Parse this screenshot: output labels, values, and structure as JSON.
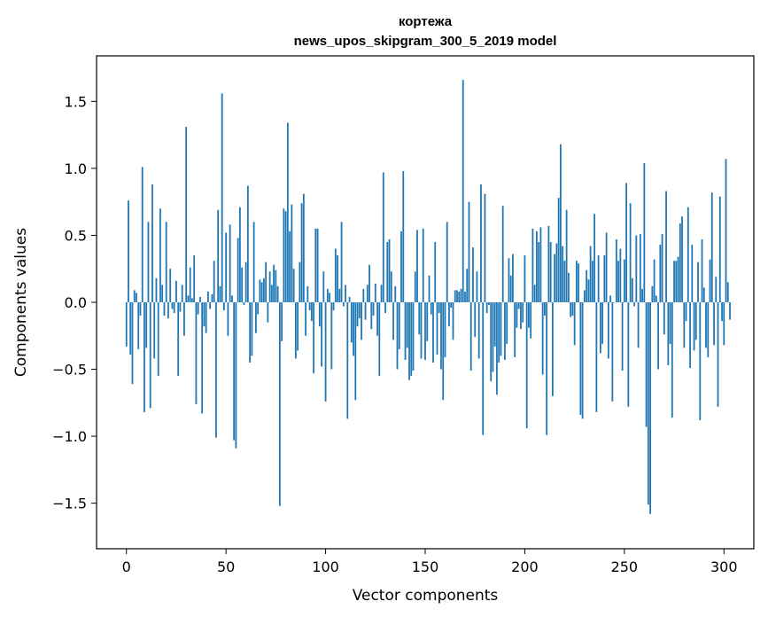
{
  "colors": {
    "bar": "#1f77b4",
    "axis": "#000000",
    "background": "#ffffff"
  },
  "chart_data": {
    "type": "bar",
    "title_lines": [
      "кортежа",
      "news_upos_skipgram_300_5_2019 model"
    ],
    "xlabel": "Vector components",
    "ylabel": "Components values",
    "xlim": [
      -15,
      315
    ],
    "ylim": [
      -1.84,
      1.84
    ],
    "grid": false,
    "legend": false,
    "x_ticks": [
      0,
      50,
      100,
      150,
      200,
      250,
      300
    ],
    "x_tick_labels": [
      "0",
      "50",
      "100",
      "150",
      "200",
      "250",
      "300"
    ],
    "y_ticks": [
      -1.5,
      -1.0,
      -0.5,
      0.0,
      0.5,
      1.0,
      1.5
    ],
    "y_tick_labels": [
      "−1.5",
      "−1.0",
      "−0.5",
      "0.0",
      "0.5",
      "1.0",
      "1.5"
    ],
    "values": [
      -0.33,
      0.76,
      -0.39,
      -0.61,
      0.09,
      0.07,
      -0.35,
      -0.1,
      1.01,
      -0.82,
      -0.34,
      0.6,
      -0.79,
      0.88,
      -0.42,
      0.18,
      -0.55,
      0.7,
      0.13,
      -0.1,
      0.6,
      -0.12,
      0.25,
      -0.05,
      -0.08,
      0.16,
      -0.55,
      -0.07,
      0.13,
      -0.25,
      1.31,
      0.05,
      0.26,
      0.03,
      0.35,
      -0.76,
      -0.09,
      0.04,
      -0.83,
      -0.18,
      -0.23,
      0.08,
      -0.05,
      0.06,
      0.31,
      -1.01,
      0.69,
      0.12,
      1.56,
      -0.06,
      0.52,
      -0.25,
      0.58,
      0.05,
      -1.03,
      -1.09,
      0.48,
      0.71,
      0.26,
      -0.02,
      0.3,
      0.87,
      -0.45,
      -0.4,
      0.6,
      -0.23,
      -0.09,
      0.17,
      0.15,
      0.18,
      0.3,
      -0.15,
      0.23,
      0.13,
      0.28,
      0.24,
      0.12,
      -1.52,
      -0.29,
      0.7,
      0.68,
      1.34,
      0.53,
      0.73,
      0.25,
      -0.42,
      -0.36,
      0.3,
      0.74,
      0.81,
      -0.25,
      0.12,
      -0.06,
      -0.14,
      -0.53,
      0.55,
      0.55,
      -0.18,
      -0.48,
      0.23,
      -0.74,
      0.1,
      0.07,
      -0.5,
      -0.06,
      0.4,
      0.35,
      0.1,
      0.6,
      -0.03,
      0.13,
      -0.87,
      0.04,
      -0.3,
      -0.4,
      -0.73,
      -0.18,
      -0.12,
      -0.28,
      0.1,
      -0.13,
      0.13,
      0.28,
      -0.2,
      -0.1,
      0.14,
      -0.25,
      -0.55,
      0.13,
      0.97,
      -0.08,
      0.45,
      0.47,
      0.23,
      -0.28,
      0.12,
      -0.5,
      -0.35,
      0.53,
      0.98,
      -0.43,
      -0.34,
      -0.58,
      -0.55,
      -0.51,
      0.23,
      0.54,
      -0.24,
      -0.42,
      0.55,
      -0.43,
      -0.29,
      0.2,
      -0.09,
      -0.45,
      0.45,
      -0.39,
      -0.08,
      -0.5,
      -0.73,
      -0.41,
      0.6,
      -0.18,
      -0.04,
      -0.28,
      0.09,
      0.09,
      0.08,
      0.1,
      1.66,
      0.08,
      0.25,
      0.75,
      -0.51,
      0.41,
      -0.26,
      0.23,
      -0.42,
      0.88,
      -0.99,
      0.81,
      -0.08,
      -0.02,
      -0.59,
      -0.52,
      -0.33,
      -0.69,
      -0.45,
      -0.4,
      0.72,
      -0.43,
      -0.31,
      0.33,
      0.2,
      0.36,
      -0.41,
      -0.19,
      -0.05,
      -0.2,
      -0.15,
      0.35,
      -0.94,
      -0.19,
      -0.27,
      0.55,
      0.13,
      0.53,
      0.45,
      0.56,
      -0.54,
      -0.1,
      -0.99,
      0.57,
      0.45,
      -0.7,
      0.36,
      0.44,
      0.78,
      1.18,
      0.42,
      0.31,
      0.69,
      0.22,
      -0.11,
      -0.1,
      -0.32,
      0.31,
      0.29,
      -0.84,
      -0.87,
      0.09,
      0.24,
      0.17,
      0.42,
      0.31,
      0.66,
      -0.82,
      0.35,
      -0.38,
      -0.31,
      0.35,
      0.52,
      -0.42,
      0.05,
      -0.74,
      0.0,
      0.47,
      0.31,
      0.4,
      -0.51,
      0.32,
      0.89,
      -0.78,
      0.74,
      0.18,
      -0.03,
      0.5,
      -0.34,
      0.51,
      0.1,
      1.04,
      -0.93,
      -1.51,
      -1.58,
      0.12,
      0.32,
      0.05,
      -0.5,
      0.43,
      0.51,
      -0.24,
      0.83,
      -0.47,
      -0.31,
      -0.86,
      0.31,
      0.31,
      0.34,
      0.59,
      0.64,
      -0.34,
      -0.14,
      0.71,
      -0.49,
      0.43,
      -0.36,
      -0.28,
      0.3,
      -0.88,
      0.47,
      0.11,
      -0.34,
      -0.41,
      0.32,
      0.82,
      -0.32,
      0.19,
      -0.78,
      0.79,
      -0.14,
      -0.32,
      1.07,
      0.15,
      -0.13
    ]
  }
}
